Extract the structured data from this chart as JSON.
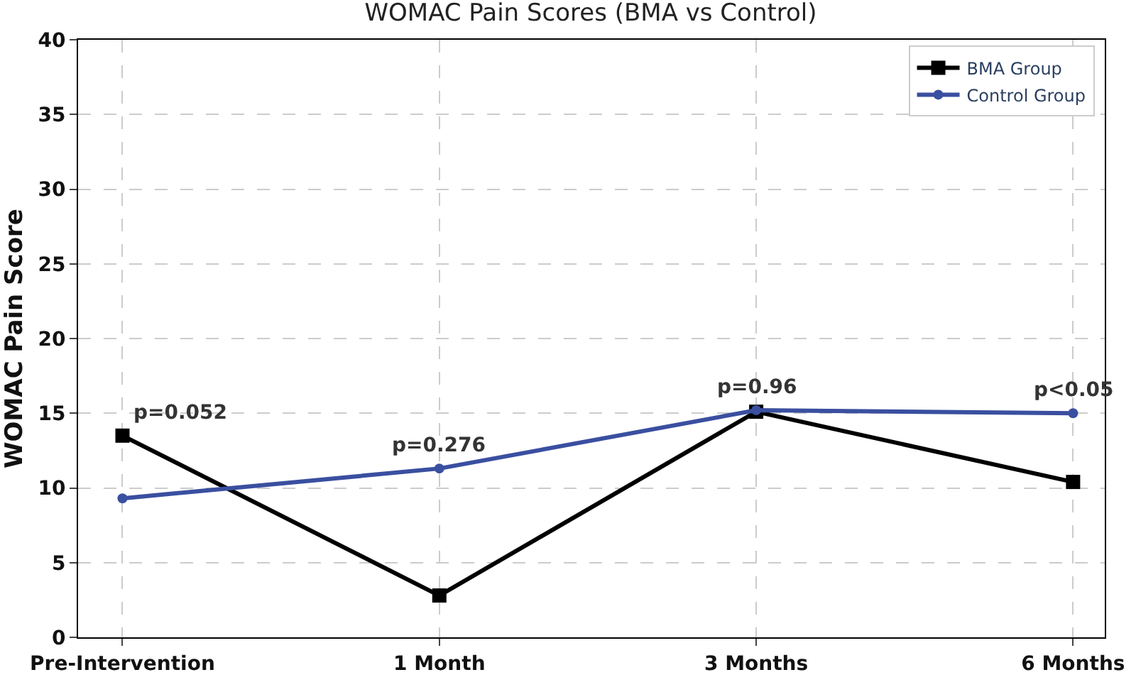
{
  "chart_data": {
    "type": "line",
    "title": "WOMAC Pain Scores (BMA vs Control)",
    "ylabel": "WOMAC Pain Score",
    "categories": [
      "Pre-Intervention",
      "1 Month",
      "3 Months",
      "6 Months"
    ],
    "series": [
      {
        "name": "BMA Group",
        "color": "#000000",
        "values": [
          13.5,
          2.8,
          15.1,
          10.4
        ],
        "marker": "square"
      },
      {
        "name": "Control Group",
        "color": "#3a4fa0",
        "values": [
          9.3,
          11.3,
          15.2,
          15.0
        ],
        "marker": "circle"
      }
    ],
    "ylim": [
      0,
      40
    ],
    "yticks": [
      0,
      5,
      10,
      15,
      20,
      25,
      30,
      35,
      40
    ],
    "annotations": [
      "p=0.052",
      "p=0.276",
      "p=0.96",
      "p<0.05"
    ],
    "grid": true,
    "legend": "top right",
    "line_style": "solid"
  }
}
